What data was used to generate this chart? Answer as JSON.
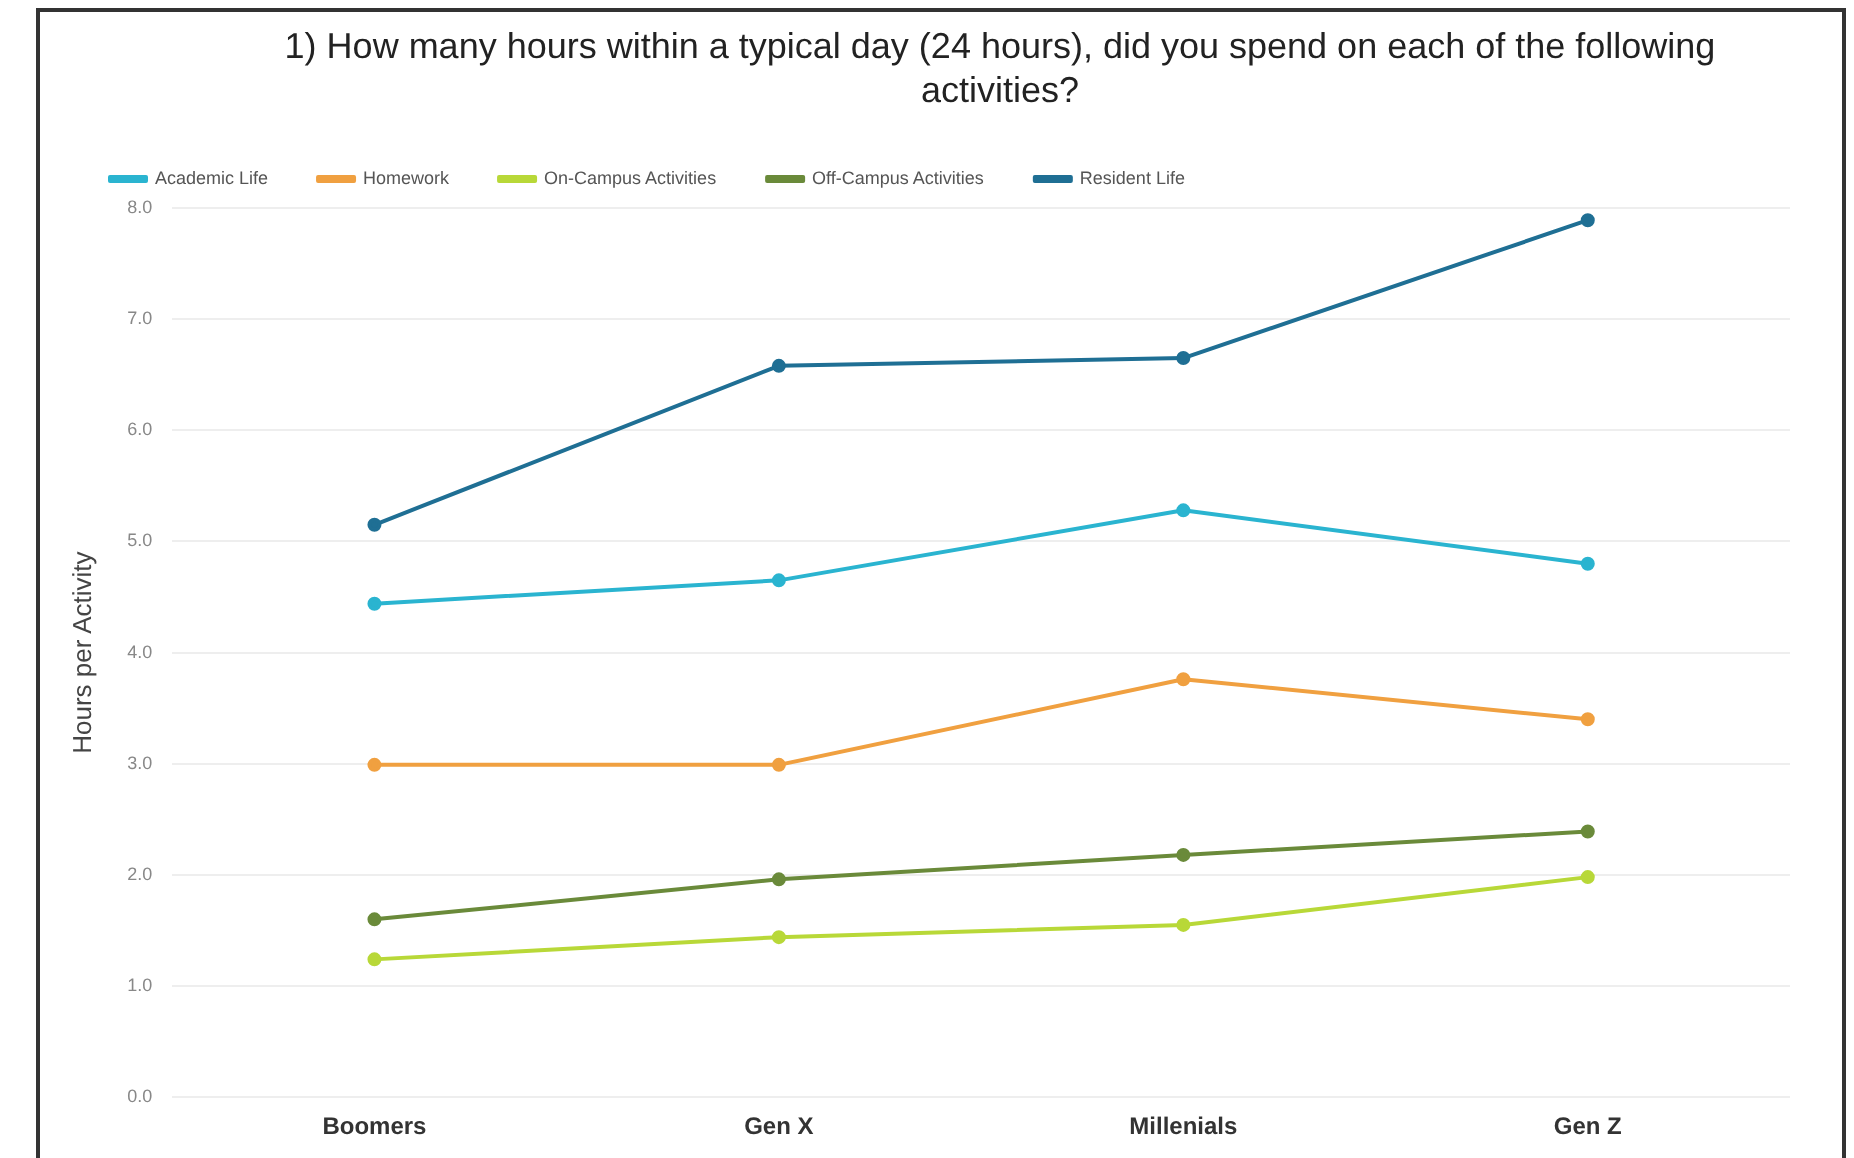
{
  "chart_data": {
    "type": "line",
    "title": "1) How many hours within a typical day (24 hours), did you spend on each of the following activities?",
    "ylabel": "Hours per Activity",
    "categories": [
      "Boomers",
      "Gen X",
      "Millenials",
      "Gen Z"
    ],
    "series": [
      {
        "name": "Academic Life",
        "color": "#2ab4d0",
        "values": [
          4.44,
          4.65,
          5.28,
          4.8
        ]
      },
      {
        "name": "Homework",
        "color": "#f0a040",
        "values": [
          2.99,
          2.99,
          3.76,
          3.4
        ]
      },
      {
        "name": "On-Campus Activities",
        "color": "#b8d838",
        "values": [
          1.24,
          1.44,
          1.55,
          1.98
        ]
      },
      {
        "name": "Off-Campus Activities",
        "color": "#6a8a3a",
        "values": [
          1.6,
          1.96,
          2.18,
          2.39
        ]
      },
      {
        "name": "Resident Life",
        "color": "#1f6f94",
        "values": [
          5.15,
          6.58,
          6.65,
          7.89
        ]
      }
    ],
    "ylim": [
      0,
      8
    ],
    "yticks": [
      {
        "value": 0,
        "label": "0.0"
      },
      {
        "value": 1,
        "label": "1.0"
      },
      {
        "value": 2,
        "label": "2.0"
      },
      {
        "value": 3,
        "label": "3.0"
      },
      {
        "value": 4,
        "label": "4.0"
      },
      {
        "value": 5,
        "label": "5.0"
      },
      {
        "value": 6,
        "label": "6.0"
      },
      {
        "value": 7,
        "label": "7.0"
      },
      {
        "value": 8,
        "label": "8.0"
      }
    ],
    "grid": "y",
    "legend": "top left",
    "marker": "circle",
    "line_style": "solid"
  }
}
